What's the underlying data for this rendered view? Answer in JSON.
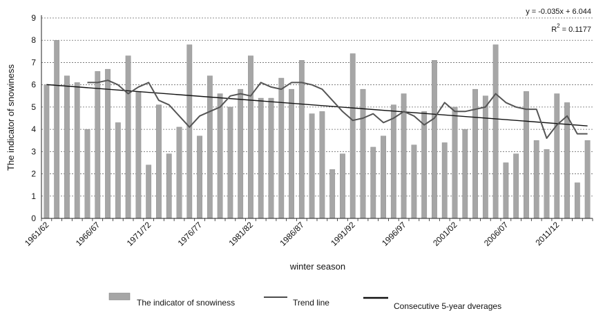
{
  "chart_data": {
    "type": "bar",
    "xlabel": "winter season",
    "ylabel": "The indicator of snowiness",
    "ylim": [
      0,
      9
    ],
    "yticks": [
      0,
      1,
      2,
      3,
      4,
      5,
      6,
      7,
      8,
      9
    ],
    "grid": "horizontal dotted",
    "legend_placement": "bottom",
    "categories": [
      "1961/62",
      "1962/63",
      "1963/64",
      "1964/65",
      "1965/66",
      "1966/67",
      "1967/68",
      "1968/69",
      "1969/70",
      "1970/71",
      "1971/72",
      "1972/73",
      "1973/74",
      "1974/75",
      "1975/76",
      "1976/77",
      "1977/78",
      "1978/79",
      "1979/80",
      "1980/81",
      "1981/82",
      "1982/83",
      "1983/84",
      "1984/85",
      "1985/86",
      "1986/87",
      "1987/88",
      "1988/89",
      "1989/90",
      "1990/91",
      "1991/92",
      "1992/93",
      "1993/94",
      "1994/95",
      "1995/96",
      "1996/97",
      "1997/98",
      "1998/99",
      "1999/00",
      "2000/01",
      "2001/02",
      "2002/03",
      "2003/04",
      "2004/05",
      "2005/06",
      "2006/07",
      "2007/08",
      "2008/09",
      "2009/10",
      "2010/11",
      "2011/12",
      "2012/13",
      "2013/14",
      "2014/15"
    ],
    "tick_labels": [
      "1961/62",
      "1966/67",
      "1971/72",
      "1976/77",
      "1981/82",
      "1986/87",
      "1991/92",
      "1996/97",
      "2001/02",
      "2006/07",
      "2011/12"
    ],
    "series": [
      {
        "name": "The indicator of snowiness",
        "kind": "bar",
        "color": "#a6a6a6",
        "values": [
          6.0,
          8.0,
          6.4,
          6.1,
          4.0,
          6.6,
          6.7,
          4.3,
          7.3,
          5.7,
          2.4,
          5.1,
          2.9,
          4.1,
          7.8,
          3.7,
          6.4,
          5.6,
          5.0,
          5.8,
          7.3,
          5.4,
          5.4,
          6.3,
          5.8,
          7.1,
          4.7,
          4.8,
          2.2,
          2.9,
          7.4,
          5.8,
          3.2,
          3.7,
          5.1,
          5.6,
          3.3,
          4.8,
          7.1,
          3.4,
          5.0,
          4.0,
          5.8,
          5.5,
          7.8,
          2.5,
          2.9,
          5.7,
          3.5,
          3.1,
          5.6,
          5.2,
          1.6,
          3.5
        ]
      },
      {
        "name": "Consecutive 5-year dverages",
        "kind": "line",
        "color": "#555555",
        "values": [
          null,
          null,
          null,
          null,
          6.1,
          6.1,
          6.2,
          6.0,
          5.6,
          5.9,
          6.1,
          5.3,
          5.1,
          4.6,
          4.1,
          4.6,
          4.8,
          5.0,
          5.5,
          5.6,
          5.5,
          6.1,
          5.9,
          5.8,
          6.1,
          6.1,
          6.0,
          5.8,
          5.3,
          4.8,
          4.4,
          4.5,
          4.7,
          4.3,
          4.5,
          4.8,
          4.6,
          4.2,
          4.5,
          5.2,
          4.8,
          4.8,
          4.9,
          5.0,
          5.6,
          5.2,
          5.0,
          4.9,
          4.9,
          3.6,
          4.2,
          4.6,
          3.8,
          3.8
        ]
      },
      {
        "name": "Trend line",
        "kind": "trend",
        "color": "#111111",
        "slope": -0.035,
        "intercept": 6.044
      }
    ],
    "annotations": [
      "y = -0.035x + 6.044",
      "R",
      "2",
      " = 0.1177"
    ]
  }
}
